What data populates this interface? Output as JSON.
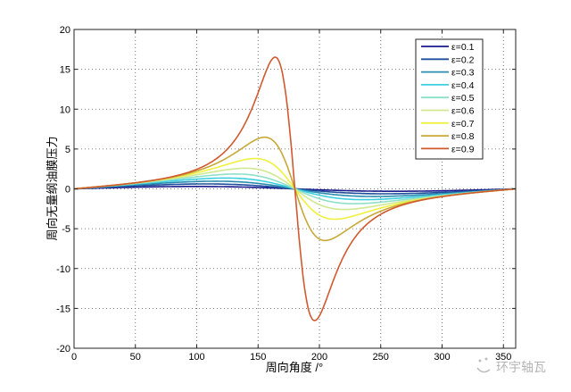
{
  "chart_data": {
    "type": "line",
    "title": "",
    "xlabel": "周向角度 /°",
    "ylabel": "周向无量纲油膜压力",
    "xlim": [
      0,
      360
    ],
    "ylim": [
      -20,
      20
    ],
    "xticks": [
      0,
      50,
      100,
      150,
      200,
      250,
      300,
      350
    ],
    "yticks": [
      -20,
      -15,
      -10,
      -5,
      0,
      5,
      10,
      15,
      20
    ],
    "grid": true,
    "legend_position": "top-right",
    "series": [
      {
        "name": "ε=0.1",
        "epsilon": 0.1,
        "peak": 0.15,
        "color": "#1a1a8c"
      },
      {
        "name": "ε=0.2",
        "epsilon": 0.2,
        "peak": 0.33,
        "color": "#1f4e9c"
      },
      {
        "name": "ε=0.3",
        "epsilon": 0.3,
        "peak": 0.55,
        "color": "#2a8cb0"
      },
      {
        "name": "ε=0.4",
        "epsilon": 0.4,
        "peak": 0.85,
        "color": "#3ed0e0"
      },
      {
        "name": "ε=0.5",
        "epsilon": 0.5,
        "peak": 1.25,
        "color": "#8ee0c8"
      },
      {
        "name": "ε=0.6",
        "epsilon": 0.6,
        "peak": 1.9,
        "color": "#d0e890"
      },
      {
        "name": "ε=0.7",
        "epsilon": 0.7,
        "peak": 3.2,
        "color": "#f0f040"
      },
      {
        "name": "ε=0.8",
        "epsilon": 0.8,
        "peak": 6.5,
        "color": "#c8a838"
      },
      {
        "name": "ε=0.9",
        "epsilon": 0.9,
        "peak": 16.6,
        "color": "#d05a30"
      }
    ]
  },
  "watermark": {
    "text": "环宇轴瓦"
  }
}
